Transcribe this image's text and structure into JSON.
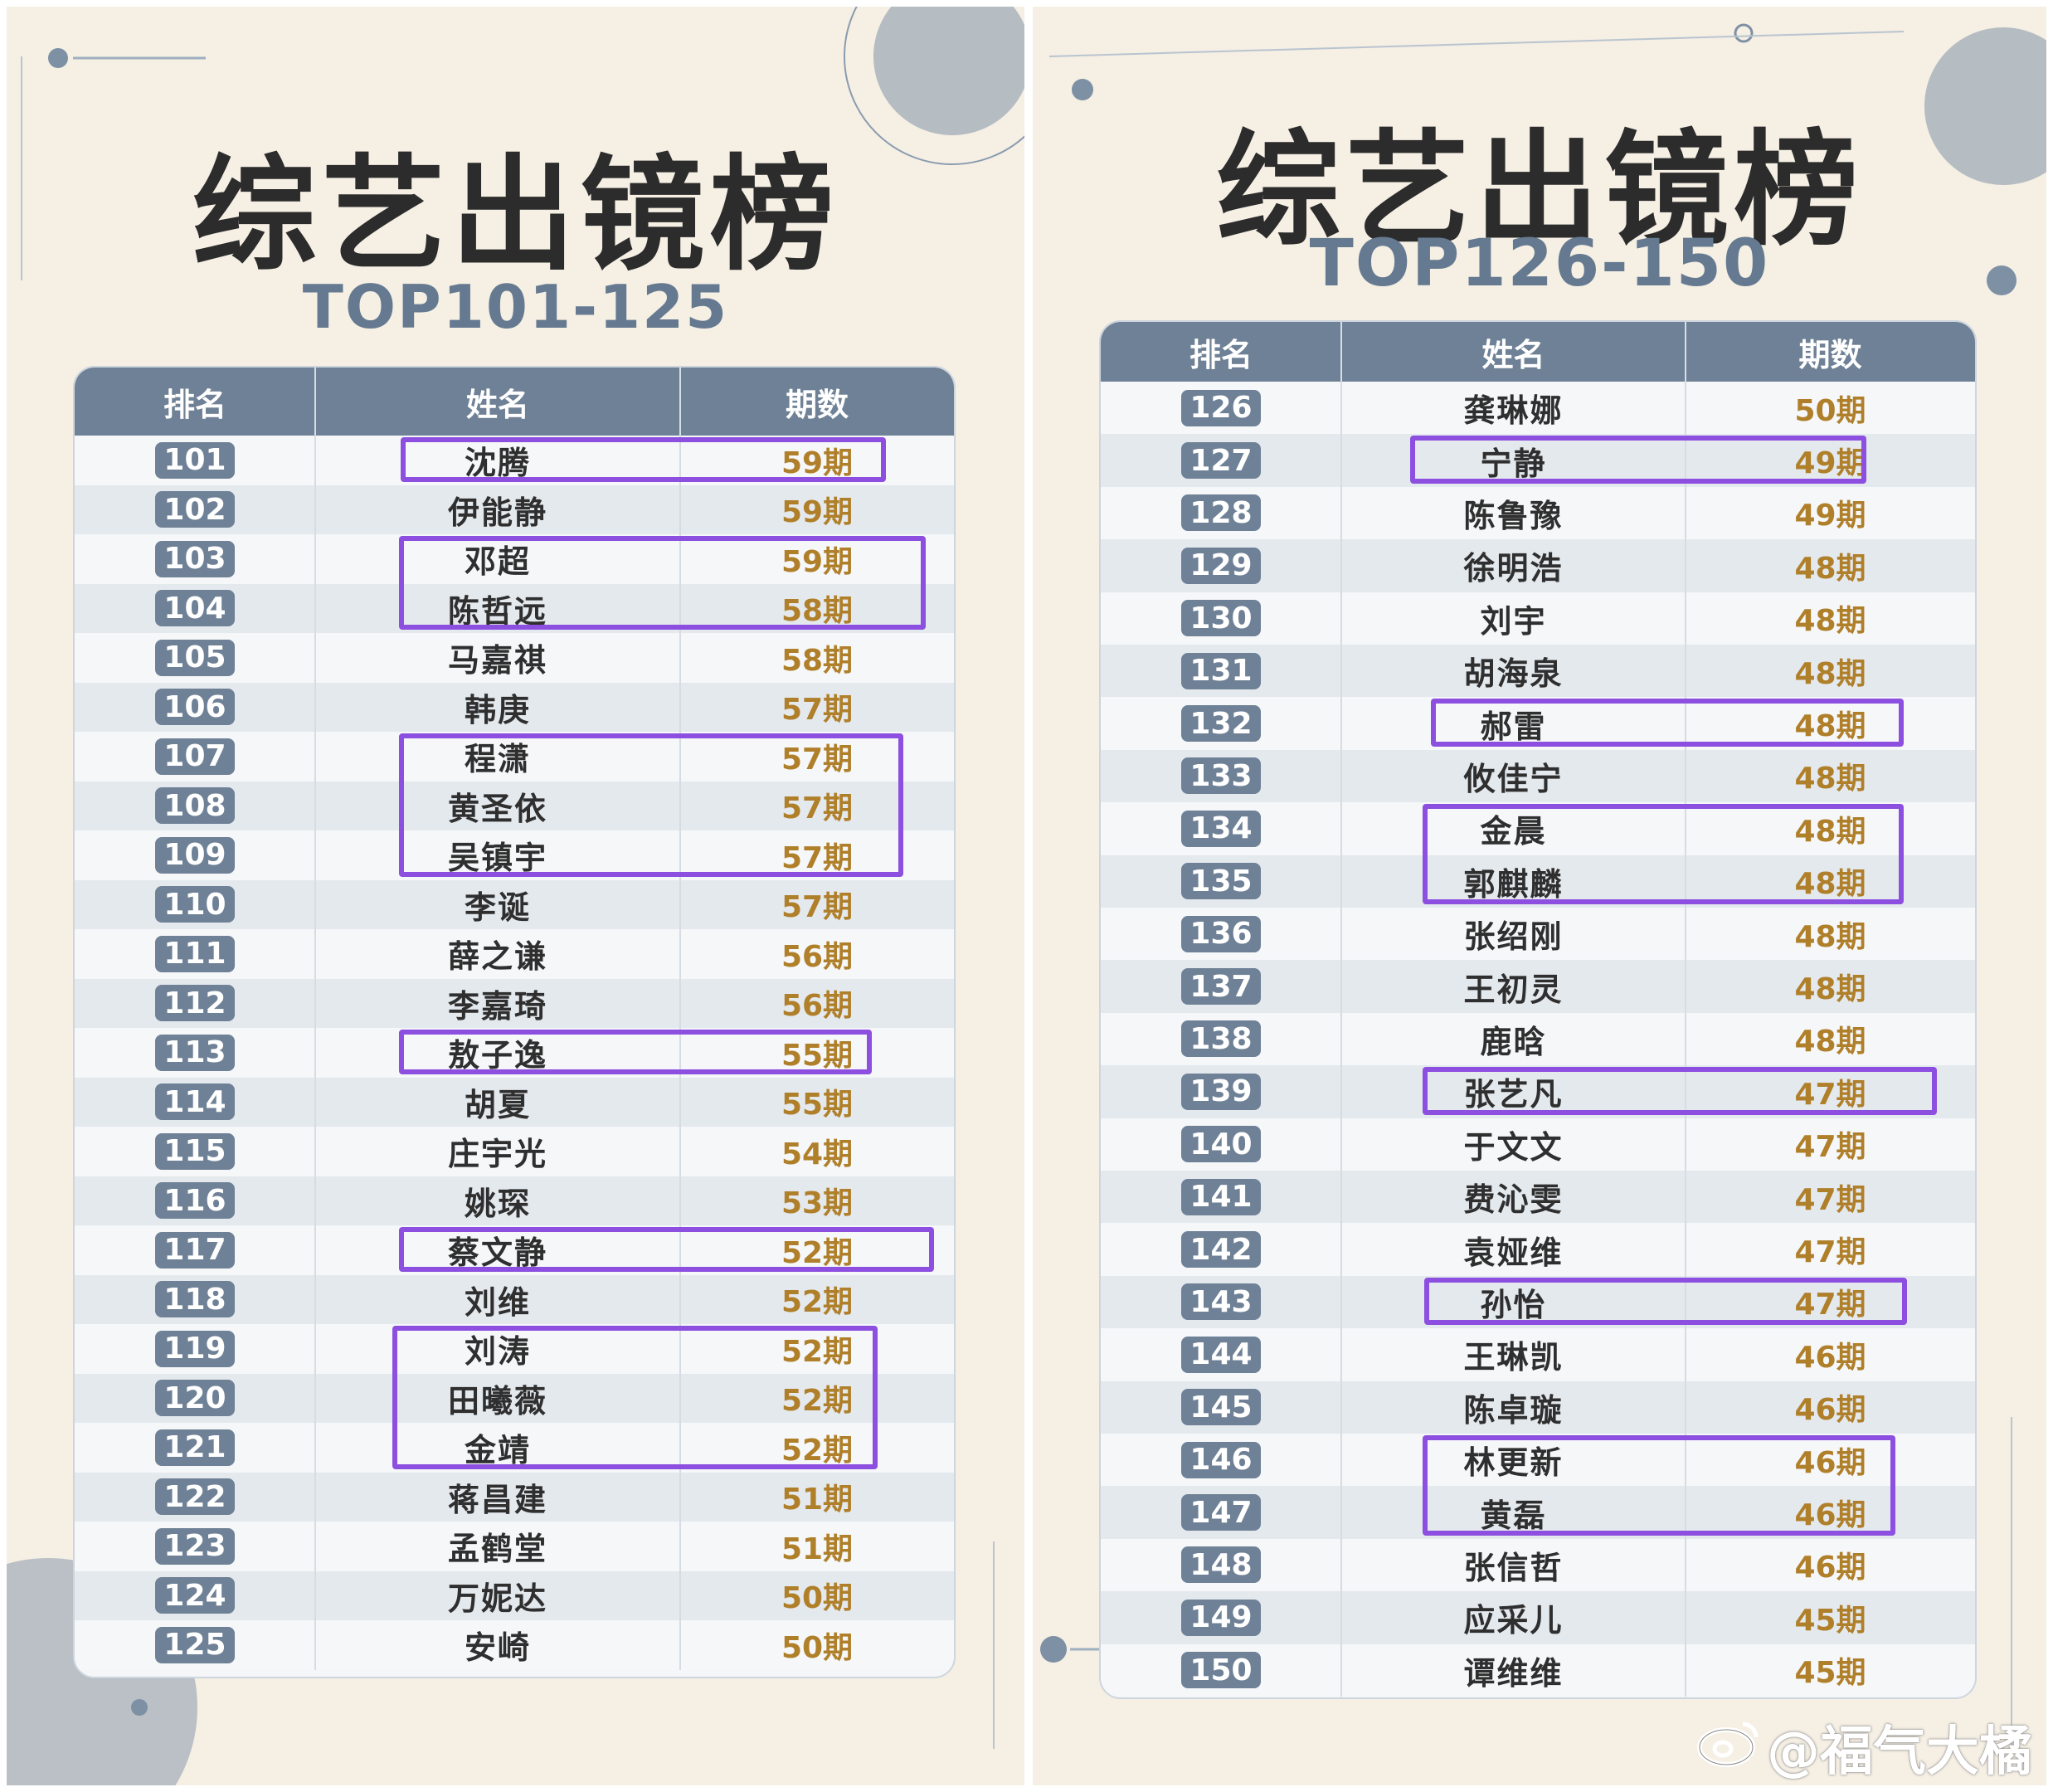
{
  "left": {
    "title": "综艺出镜榜",
    "subtitle": "TOP101-125",
    "headers": [
      "排名",
      "姓名",
      "期数"
    ],
    "rows": [
      {
        "rank": "101",
        "name": "沈腾",
        "count": "59期"
      },
      {
        "rank": "102",
        "name": "伊能静",
        "count": "59期"
      },
      {
        "rank": "103",
        "name": "邓超",
        "count": "59期"
      },
      {
        "rank": "104",
        "name": "陈哲远",
        "count": "58期"
      },
      {
        "rank": "105",
        "name": "马嘉祺",
        "count": "58期"
      },
      {
        "rank": "106",
        "name": "韩庚",
        "count": "57期"
      },
      {
        "rank": "107",
        "name": "程潇",
        "count": "57期"
      },
      {
        "rank": "108",
        "name": "黄圣依",
        "count": "57期"
      },
      {
        "rank": "109",
        "name": "吴镇宇",
        "count": "57期"
      },
      {
        "rank": "110",
        "name": "李诞",
        "count": "57期"
      },
      {
        "rank": "111",
        "name": "薛之谦",
        "count": "56期"
      },
      {
        "rank": "112",
        "name": "李嘉琦",
        "count": "56期"
      },
      {
        "rank": "113",
        "name": "敖子逸",
        "count": "55期"
      },
      {
        "rank": "114",
        "name": "胡夏",
        "count": "55期"
      },
      {
        "rank": "115",
        "name": "庄宇光",
        "count": "54期"
      },
      {
        "rank": "116",
        "name": "姚琛",
        "count": "53期"
      },
      {
        "rank": "117",
        "name": "蔡文静",
        "count": "52期"
      },
      {
        "rank": "118",
        "name": "刘维",
        "count": "52期"
      },
      {
        "rank": "119",
        "name": "刘涛",
        "count": "52期"
      },
      {
        "rank": "120",
        "name": "田曦薇",
        "count": "52期"
      },
      {
        "rank": "121",
        "name": "金靖",
        "count": "52期"
      },
      {
        "rank": "122",
        "name": "蒋昌建",
        "count": "51期"
      },
      {
        "rank": "123",
        "name": "孟鹤堂",
        "count": "51期"
      },
      {
        "rank": "124",
        "name": "万妮达",
        "count": "50期"
      },
      {
        "rank": "125",
        "name": "安崎",
        "count": "50期"
      }
    ]
  },
  "right": {
    "title": "综艺出镜榜",
    "subtitle": "TOP126-150",
    "headers": [
      "排名",
      "姓名",
      "期数"
    ],
    "rows": [
      {
        "rank": "126",
        "name": "龚琳娜",
        "count": "50期"
      },
      {
        "rank": "127",
        "name": "宁静",
        "count": "49期"
      },
      {
        "rank": "128",
        "name": "陈鲁豫",
        "count": "49期"
      },
      {
        "rank": "129",
        "name": "徐明浩",
        "count": "48期"
      },
      {
        "rank": "130",
        "name": "刘宇",
        "count": "48期"
      },
      {
        "rank": "131",
        "name": "胡海泉",
        "count": "48期"
      },
      {
        "rank": "132",
        "name": "郝雷",
        "count": "48期"
      },
      {
        "rank": "133",
        "name": "攸佳宁",
        "count": "48期"
      },
      {
        "rank": "134",
        "name": "金晨",
        "count": "48期"
      },
      {
        "rank": "135",
        "name": "郭麒麟",
        "count": "48期"
      },
      {
        "rank": "136",
        "name": "张绍刚",
        "count": "48期"
      },
      {
        "rank": "137",
        "name": "王初灵",
        "count": "48期"
      },
      {
        "rank": "138",
        "name": "鹿晗",
        "count": "48期"
      },
      {
        "rank": "139",
        "name": "张艺凡",
        "count": "47期"
      },
      {
        "rank": "140",
        "name": "于文文",
        "count": "47期"
      },
      {
        "rank": "141",
        "name": "费沁雯",
        "count": "47期"
      },
      {
        "rank": "142",
        "name": "袁娅维",
        "count": "47期"
      },
      {
        "rank": "143",
        "name": "孙怡",
        "count": "47期"
      },
      {
        "rank": "144",
        "name": "王琳凯",
        "count": "46期"
      },
      {
        "rank": "145",
        "name": "陈卓璇",
        "count": "46期"
      },
      {
        "rank": "146",
        "name": "林更新",
        "count": "46期"
      },
      {
        "rank": "147",
        "name": "黄磊",
        "count": "46期"
      },
      {
        "rank": "148",
        "name": "张信哲",
        "count": "46期"
      },
      {
        "rank": "149",
        "name": "应采儿",
        "count": "45期"
      },
      {
        "rank": "150",
        "name": "谭维维",
        "count": "45期"
      }
    ]
  },
  "watermark": "@福气大橘",
  "colors": {
    "background": "#f5efe4",
    "header": "#6f8196",
    "highlight": "#8c4fe0",
    "count_text": "#b07f2a"
  }
}
